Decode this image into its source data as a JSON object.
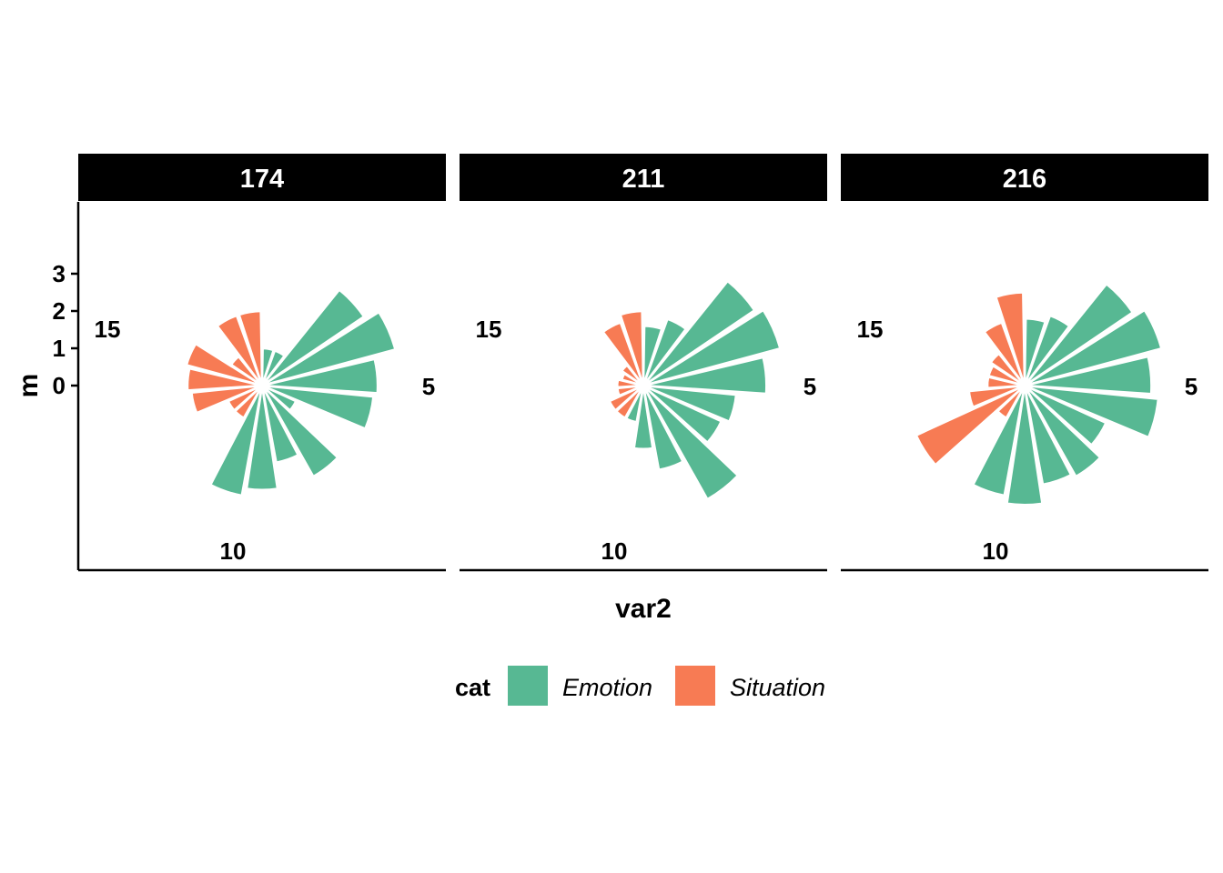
{
  "chart_data": {
    "type": "bar",
    "coord": "polar",
    "facet_labels": [
      "174",
      "211",
      "216"
    ],
    "xlabel": "var2",
    "ylabel": "m",
    "y_ticks": [
      "0",
      "1",
      "2",
      "3"
    ],
    "ylim": [
      -1,
      4
    ],
    "theta_ticks": [
      {
        "label": "5",
        "value": 5
      },
      {
        "label": "10",
        "value": 10
      },
      {
        "label": "15",
        "value": 15
      }
    ],
    "theta_range": [
      0.5,
      19.5
    ],
    "legend": {
      "title": "cat",
      "position": "bottom",
      "entries": [
        {
          "name": "Emotion",
          "color": "#57B893"
        },
        {
          "name": "Situation",
          "color": "#F77B54"
        }
      ]
    },
    "facets": [
      {
        "facet": "174",
        "bars": [
          {
            "x": 1,
            "value": 0.0,
            "cat": "Emotion"
          },
          {
            "x": 2,
            "value": 0.0,
            "cat": "Emotion"
          },
          {
            "x": 3,
            "value": 2.3,
            "cat": "Emotion"
          },
          {
            "x": 4,
            "value": 2.7,
            "cat": "Emotion"
          },
          {
            "x": 5,
            "value": 2.1,
            "cat": "Emotion"
          },
          {
            "x": 6,
            "value": 2.0,
            "cat": "Emotion"
          },
          {
            "x": 7,
            "value": 0.0,
            "cat": "Emotion"
          },
          {
            "x": 8,
            "value": 1.8,
            "cat": "Emotion"
          },
          {
            "x": 9,
            "value": 1.1,
            "cat": "Emotion"
          },
          {
            "x": 10,
            "value": 1.8,
            "cat": "Emotion"
          },
          {
            "x": 11,
            "value": 2.0,
            "cat": "Emotion"
          },
          {
            "x": 12,
            "value": 0.0,
            "cat": "Situation"
          },
          {
            "x": 13,
            "value": 0.0,
            "cat": "Situation"
          },
          {
            "x": 14,
            "value": 0.9,
            "cat": "Situation"
          },
          {
            "x": 15,
            "value": 1.0,
            "cat": "Situation"
          },
          {
            "x": 16,
            "value": 1.1,
            "cat": "Situation"
          },
          {
            "x": 17,
            "value": 0.0,
            "cat": "Situation"
          },
          {
            "x": 18,
            "value": 1.0,
            "cat": "Situation"
          },
          {
            "x": 19,
            "value": 1.0,
            "cat": "Situation"
          }
        ]
      },
      {
        "facet": "211",
        "bars": [
          {
            "x": 1,
            "value": 0.6,
            "cat": "Emotion"
          },
          {
            "x": 2,
            "value": 0.9,
            "cat": "Emotion"
          },
          {
            "x": 3,
            "value": 2.6,
            "cat": "Emotion"
          },
          {
            "x": 4,
            "value": 2.8,
            "cat": "Emotion"
          },
          {
            "x": 5,
            "value": 2.3,
            "cat": "Emotion"
          },
          {
            "x": 6,
            "value": 1.5,
            "cat": "Emotion"
          },
          {
            "x": 7,
            "value": 1.3,
            "cat": "Emotion"
          },
          {
            "x": 8,
            "value": 2.5,
            "cat": "Emotion"
          },
          {
            "x": 9,
            "value": 1.3,
            "cat": "Emotion"
          },
          {
            "x": 10,
            "value": 0.7,
            "cat": "Emotion"
          },
          {
            "x": 11,
            "value": 0.0,
            "cat": "Emotion"
          },
          {
            "x": 12,
            "value": 0.0,
            "cat": "Situation"
          },
          {
            "x": 13,
            "value": 0.0,
            "cat": "Situation"
          },
          {
            "x": 14,
            "value": -0.3,
            "cat": "Situation"
          },
          {
            "x": 15,
            "value": -0.3,
            "cat": "Situation"
          },
          {
            "x": 16,
            "value": -0.4,
            "cat": "Situation"
          },
          {
            "x": 17,
            "value": -0.3,
            "cat": "Situation"
          },
          {
            "x": 18,
            "value": 0.8,
            "cat": "Situation"
          },
          {
            "x": 19,
            "value": 1.0,
            "cat": "Situation"
          }
        ]
      },
      {
        "facet": "216",
        "bars": [
          {
            "x": 1,
            "value": 0.8,
            "cat": "Emotion"
          },
          {
            "x": 2,
            "value": 1.0,
            "cat": "Emotion"
          },
          {
            "x": 3,
            "value": 2.5,
            "cat": "Emotion"
          },
          {
            "x": 4,
            "value": 2.8,
            "cat": "Emotion"
          },
          {
            "x": 5,
            "value": 2.4,
            "cat": "Emotion"
          },
          {
            "x": 6,
            "value": 2.6,
            "cat": "Emotion"
          },
          {
            "x": 7,
            "value": 1.4,
            "cat": "Emotion"
          },
          {
            "x": 8,
            "value": 1.8,
            "cat": "Emotion"
          },
          {
            "x": 9,
            "value": 1.7,
            "cat": "Emotion"
          },
          {
            "x": 10,
            "value": 2.2,
            "cat": "Emotion"
          },
          {
            "x": 11,
            "value": 2.0,
            "cat": "Emotion"
          },
          {
            "x": 12,
            "value": 0.0,
            "cat": "Situation"
          },
          {
            "x": 13,
            "value": 2.2,
            "cat": "Situation"
          },
          {
            "x": 14,
            "value": 0.5,
            "cat": "Situation"
          },
          {
            "x": 15,
            "value": 0.0,
            "cat": "Situation"
          },
          {
            "x": 16,
            "value": 0.0,
            "cat": "Situation"
          },
          {
            "x": 17,
            "value": 0.1,
            "cat": "Situation"
          },
          {
            "x": 18,
            "value": 0.8,
            "cat": "Situation"
          },
          {
            "x": 19,
            "value": 1.5,
            "cat": "Situation"
          }
        ]
      }
    ]
  }
}
